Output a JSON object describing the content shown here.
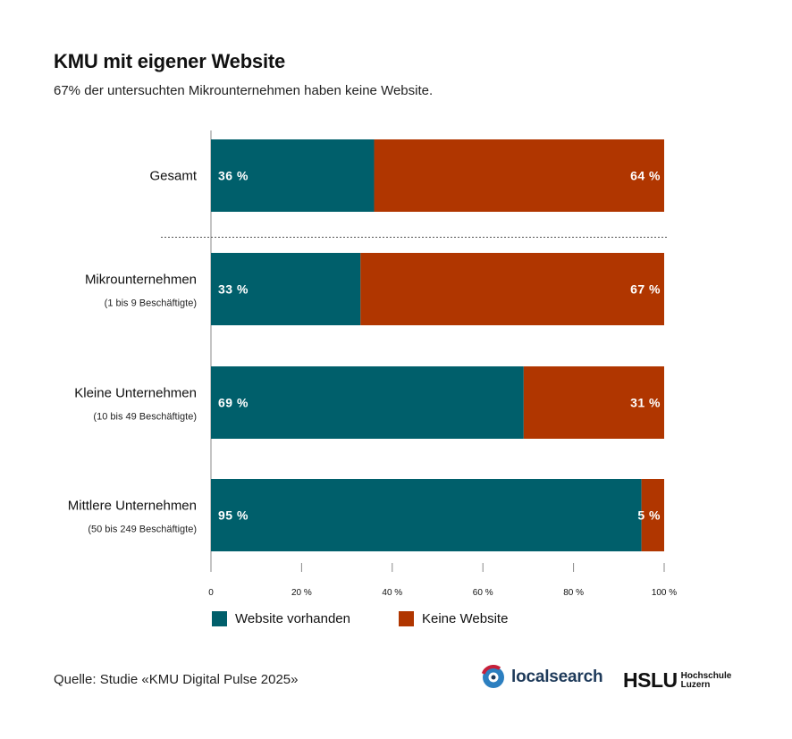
{
  "title": "KMU mit eigener Website",
  "subtitle": "67% der untersuchten Mikrounternehmen haben keine Website.",
  "source": "Quelle: Studie «KMU Digital Pulse 2025»",
  "logos": {
    "localsearch": "localsearch",
    "hslu_main": "HSLU",
    "hslu_line1": "Hochschule",
    "hslu_line2": "Luzern"
  },
  "colors": {
    "website": "#005f6b",
    "keine": "#b03600",
    "axis": "#888888",
    "label_text": "#ffffff"
  },
  "chart_data": {
    "type": "bar",
    "orientation": "horizontal",
    "stacked": true,
    "categories": [
      {
        "label": "Gesamt",
        "sublabel": ""
      },
      {
        "label": "Mikrounternehmen",
        "sublabel": "(1 bis 9 Beschäftigte)"
      },
      {
        "label": "Kleine Unternehmen",
        "sublabel": "(10 bis 49 Beschäftigte)"
      },
      {
        "label": "Mittlere Unternehmen",
        "sublabel": "(50 bis 249 Beschäftigte)"
      }
    ],
    "series": [
      {
        "name": "Website vorhanden",
        "values": [
          36,
          33,
          69,
          95
        ],
        "labels": [
          "36 %",
          "33 %",
          "69 %",
          "95 %"
        ]
      },
      {
        "name": "Keine Website",
        "values": [
          64,
          67,
          31,
          5
        ],
        "labels": [
          "64 %",
          "67 %",
          "31 %",
          "5 %"
        ]
      }
    ],
    "xlim": [
      0,
      100
    ],
    "x_ticks": [
      0,
      20,
      40,
      60,
      80,
      100
    ],
    "x_tick_labels": [
      "0",
      "20 %",
      "40 %",
      "60 %",
      "80 %",
      "100 %"
    ],
    "separator_after_first": true,
    "legend_position": "bottom-left",
    "grid": false
  }
}
